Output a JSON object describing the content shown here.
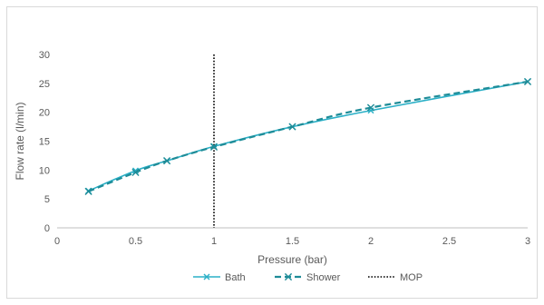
{
  "chart_data": {
    "type": "line",
    "xlabel": "Pressure (bar)",
    "ylabel": "Flow rate (l/min)",
    "xlim": [
      0,
      3
    ],
    "ylim": [
      0,
      30
    ],
    "x_ticks": [
      0,
      0.5,
      1,
      1.5,
      2,
      2.5,
      3
    ],
    "x_tick_labels": [
      "0",
      "0.5",
      "1",
      "1.5",
      "2",
      "2.5",
      "3"
    ],
    "y_ticks": [
      0,
      5,
      10,
      15,
      20,
      25,
      30
    ],
    "y_tick_labels": [
      "0",
      "5",
      "10",
      "15",
      "20",
      "25",
      "30"
    ],
    "grid": false,
    "legend_position": "bottom",
    "series": [
      {
        "name": "Bath",
        "style": "solid",
        "marker": "x",
        "color": "#2bb0c7",
        "x": [
          0.2,
          0.5,
          0.7,
          1,
          1.5,
          2,
          3
        ],
        "y": [
          6.4,
          9.9,
          11.6,
          14.1,
          17.5,
          20.3,
          25.3
        ]
      },
      {
        "name": "Shower",
        "style": "dashed",
        "marker": "x",
        "color": "#1e8c98",
        "x": [
          0.2,
          0.5,
          0.7,
          1,
          1.5,
          2,
          3
        ],
        "y": [
          6.3,
          9.6,
          11.6,
          14.0,
          17.5,
          20.8,
          25.3
        ]
      }
    ],
    "reference_lines": [
      {
        "name": "MOP",
        "orientation": "vertical",
        "x": 1,
        "style": "dotted",
        "color": "#000000"
      }
    ]
  }
}
